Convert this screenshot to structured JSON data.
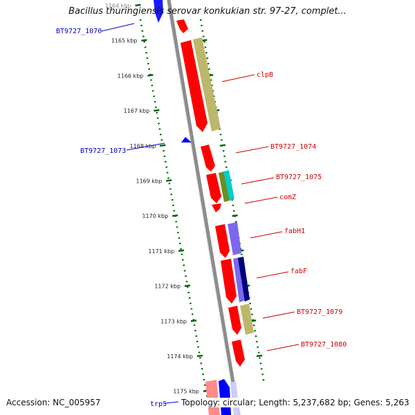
{
  "title": "Bacillus thuringiensis serovar konkukian str. 97-27, complet...",
  "footer": {
    "accession": "Accession: NC_005957",
    "topology": "Topology: circular; Length: 5,237,682 bp; Genes: 5,263"
  },
  "ticks": [
    "1164 kbp",
    "1165 kbp",
    "1166 kbp",
    "1167 kbp",
    "1168 kbp",
    "1169 kbp",
    "1170 kbp",
    "1171 kbp",
    "1172 kbp",
    "1173 kbp",
    "1174 kbp",
    "1175 kbp"
  ],
  "genes": [
    {
      "label": "BT9727_1070",
      "side": "left",
      "color": "#0000cc"
    },
    {
      "label": "BT9727_1073",
      "side": "left",
      "color": "#0000cc"
    },
    {
      "label": "trpS",
      "side": "left",
      "color": "#0000cc"
    },
    {
      "label": "clpB",
      "side": "right",
      "color": "#cc0000"
    },
    {
      "label": "BT9727_1074",
      "side": "right",
      "color": "#cc0000"
    },
    {
      "label": "BT9727_1075",
      "side": "right",
      "color": "#cc0000"
    },
    {
      "label": "comZ",
      "side": "right",
      "color": "#cc0000"
    },
    {
      "label": "fabH1",
      "side": "right",
      "color": "#cc0000"
    },
    {
      "label": "fabF",
      "side": "right",
      "color": "#cc0000"
    },
    {
      "label": "BT9727_1079",
      "side": "right",
      "color": "#cc0000"
    },
    {
      "label": "BT9727_1080",
      "side": "right",
      "color": "#cc0000"
    }
  ],
  "colors": {
    "backbone": "#8c8c8c",
    "forward_gene": "#ff0000",
    "reverse_gene": "#0000ff",
    "tick_dots": "#006600",
    "cog_olive": "#bdb76b",
    "cog_purple": "#7b68ee",
    "cog_navy": "#00007f",
    "cog_cyan": "#00cccc",
    "cog_green": "#6b8e23"
  }
}
